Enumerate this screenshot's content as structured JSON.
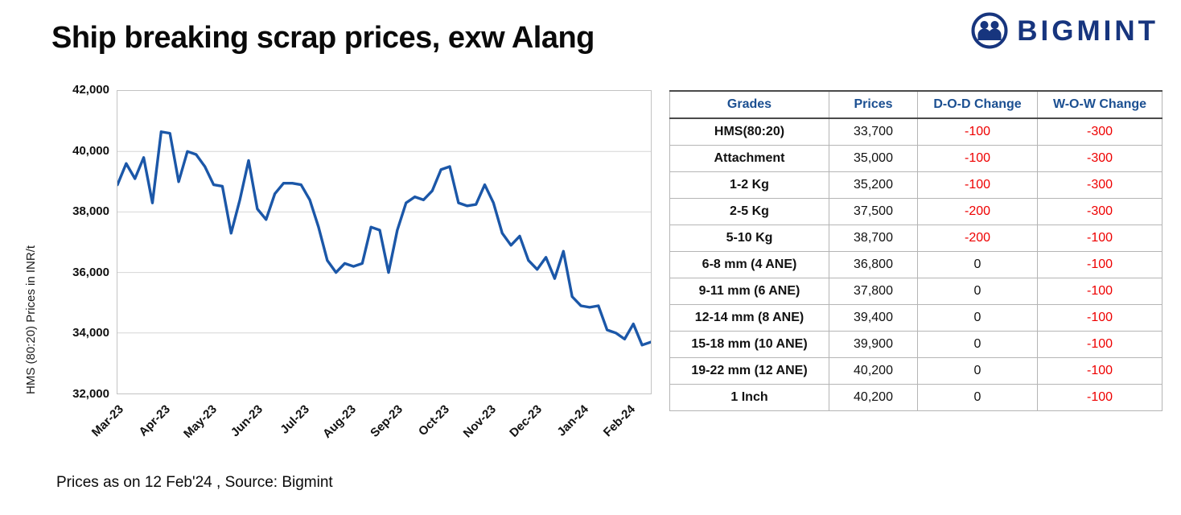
{
  "header": {
    "title": "Ship breaking scrap prices, exw Alang",
    "brand": "BIGMINT"
  },
  "footer": {
    "note": "Prices as on 12 Feb'24 , Source: Bigmint"
  },
  "colors": {
    "brand": "#17357e",
    "table_header": "#1b4f91",
    "negative": "#ee0000",
    "line": "#1b57a8",
    "grid": "#d6d6d6"
  },
  "table": {
    "headers": [
      "Grades",
      "Prices",
      "D-O-D Change",
      "W-O-W Change"
    ],
    "rows": [
      {
        "grade": "HMS(80:20)",
        "price": "33,700",
        "dod": "-100",
        "wow": "-300"
      },
      {
        "grade": "Attachment",
        "price": "35,000",
        "dod": "-100",
        "wow": "-300"
      },
      {
        "grade": "1-2 Kg",
        "price": "35,200",
        "dod": "-100",
        "wow": "-300"
      },
      {
        "grade": "2-5 Kg",
        "price": "37,500",
        "dod": "-200",
        "wow": "-300"
      },
      {
        "grade": "5-10 Kg",
        "price": "38,700",
        "dod": "-200",
        "wow": "-100"
      },
      {
        "grade": "6-8 mm (4 ANE)",
        "price": "36,800",
        "dod": "0",
        "wow": "-100"
      },
      {
        "grade": "9-11 mm (6 ANE)",
        "price": "37,800",
        "dod": "0",
        "wow": "-100"
      },
      {
        "grade": "12-14 mm (8 ANE)",
        "price": "39,400",
        "dod": "0",
        "wow": "-100"
      },
      {
        "grade": "15-18 mm (10 ANE)",
        "price": "39,900",
        "dod": "0",
        "wow": "-100"
      },
      {
        "grade": "19-22 mm (12 ANE)",
        "price": "40,200",
        "dod": "0",
        "wow": "-100"
      },
      {
        "grade": "1 Inch",
        "price": "40,200",
        "dod": "0",
        "wow": "-100"
      }
    ]
  },
  "chart_data": {
    "type": "line",
    "title": "",
    "xlabel": "",
    "ylabel": "HMS (80:20) Prices in INR/t",
    "ylim": [
      32000,
      42000
    ],
    "ytick_step": 2000,
    "ytick_labels": [
      "42,000",
      "40,000",
      "38,000",
      "36,000",
      "34,000",
      "32,000"
    ],
    "x_tick_labels": [
      "Mar-23",
      "Apr-23",
      "May-23",
      "Jun-23",
      "Jul-23",
      "Aug-23",
      "Sep-23",
      "Oct-23",
      "Nov-23",
      "Dec-23",
      "Jan-24",
      "Feb-24"
    ],
    "grid": true,
    "legend": "none",
    "series": [
      {
        "name": "HMS (80:20) exw Alang",
        "values": [
          38900,
          39600,
          39100,
          39800,
          38300,
          40650,
          40600,
          39000,
          40000,
          39900,
          39500,
          38900,
          38850,
          37300,
          38400,
          39700,
          38100,
          37750,
          38600,
          38950,
          38950,
          38900,
          38400,
          37500,
          36400,
          36000,
          36300,
          36200,
          36300,
          37500,
          37400,
          36000,
          37400,
          38300,
          38500,
          38400,
          38700,
          39400,
          39500,
          38300,
          38200,
          38250,
          38900,
          38300,
          37300,
          36900,
          37200,
          36400,
          36100,
          36500,
          35800,
          36700,
          35200,
          34900,
          34850,
          34900,
          34100,
          34000,
          33800,
          34300,
          33600,
          33700
        ]
      }
    ]
  }
}
